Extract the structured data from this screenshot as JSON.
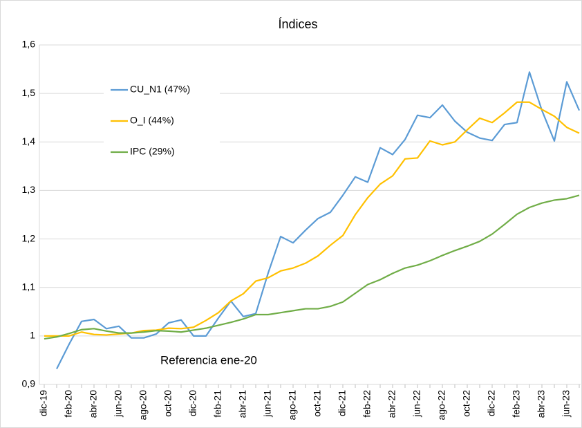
{
  "chart_data": {
    "type": "line",
    "title": "Índices",
    "annotation": "Referencia ene-20",
    "categories": [
      "dic-19",
      null,
      "feb-20",
      null,
      "abr-20",
      null,
      "jun-20",
      null,
      "ago-20",
      null,
      "oct-20",
      null,
      "dic-20",
      null,
      "feb-21",
      null,
      "abr-21",
      null,
      "jun-21",
      null,
      "ago-21",
      null,
      "oct-21",
      null,
      "dic-21",
      null,
      "feb-22",
      null,
      "abr-22",
      null,
      "jun-22",
      null,
      "ago-22",
      null,
      "oct-22",
      null,
      "dic-22",
      null,
      "feb-23",
      null,
      "abr-23",
      null,
      "jun-23",
      null
    ],
    "series": [
      {
        "name": "CU_N1 (47%)",
        "color": "#5b9bd5",
        "values": [
          null,
          0.932,
          0.983,
          1.03,
          1.034,
          1.015,
          1.02,
          0.996,
          0.996,
          1.004,
          1.027,
          1.033,
          1.0,
          1.0,
          1.037,
          1.072,
          1.04,
          1.046,
          1.13,
          1.205,
          1.192,
          1.218,
          1.242,
          1.255,
          1.29,
          1.328,
          1.317,
          1.388,
          1.374,
          1.405,
          1.455,
          1.45,
          1.476,
          1.443,
          1.42,
          1.408,
          1.403,
          1.436,
          1.44,
          1.544,
          1.465,
          1.402,
          1.524,
          1.465
        ]
      },
      {
        "name": "O_I (44%)",
        "color": "#ffc000",
        "values": [
          1.0,
          1.0,
          1.0,
          1.008,
          1.003,
          1.002,
          1.004,
          1.006,
          1.011,
          1.012,
          1.016,
          1.015,
          1.018,
          1.032,
          1.048,
          1.072,
          1.087,
          1.113,
          1.12,
          1.134,
          1.14,
          1.15,
          1.165,
          1.187,
          1.207,
          1.25,
          1.285,
          1.313,
          1.33,
          1.365,
          1.367,
          1.402,
          1.394,
          1.4,
          1.425,
          1.449,
          1.44,
          1.46,
          1.482,
          1.482,
          1.467,
          1.453,
          1.43,
          1.418
        ]
      },
      {
        "name": "IPC (29%)",
        "color": "#70ad47",
        "values": [
          0.994,
          0.998,
          1.005,
          1.013,
          1.015,
          1.01,
          1.006,
          1.006,
          1.008,
          1.011,
          1.01,
          1.008,
          1.012,
          1.016,
          1.022,
          1.028,
          1.035,
          1.044,
          1.044,
          1.048,
          1.052,
          1.056,
          1.056,
          1.061,
          1.07,
          1.088,
          1.106,
          1.116,
          1.129,
          1.14,
          1.146,
          1.155,
          1.166,
          1.176,
          1.185,
          1.195,
          1.21,
          1.23,
          1.251,
          1.265,
          1.274,
          1.28,
          1.283,
          1.29
        ]
      }
    ],
    "ylim": [
      0.9,
      1.6
    ],
    "yticks": [
      {
        "value": 0.9,
        "label": "0,9"
      },
      1,
      {
        "value": 1.1,
        "label": "1,1"
      },
      {
        "value": 1.2,
        "label": "1,2"
      },
      {
        "value": 1.3,
        "label": "1,3"
      },
      {
        "value": 1.4,
        "label": "1,4"
      },
      {
        "value": 1.5,
        "label": "1,5"
      },
      {
        "value": 1.6,
        "label": "1,6"
      }
    ],
    "grid": true
  }
}
